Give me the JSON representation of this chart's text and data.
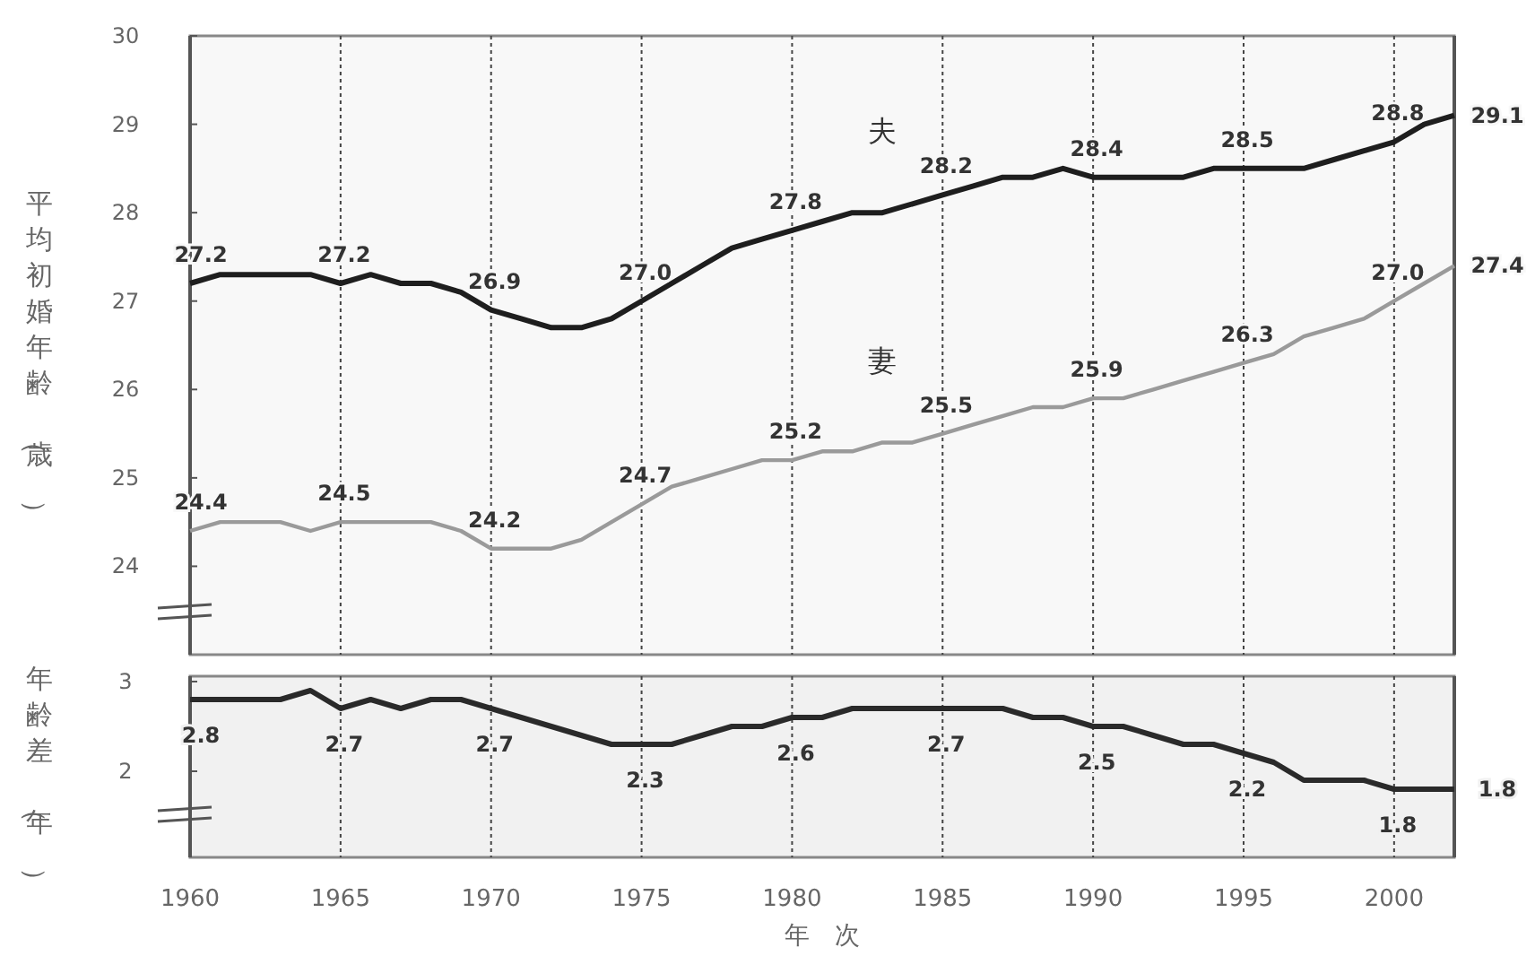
{
  "chart_data": [
    {
      "type": "line",
      "ylabel": "平均初婚年齢（歳）",
      "xlim": [
        1960,
        2002
      ],
      "xticks": [
        1960,
        1965,
        1970,
        1975,
        1980,
        1985,
        1990,
        1995,
        2000
      ],
      "ylim": [
        23,
        30
      ],
      "yticks": [
        24,
        25,
        26,
        27,
        28,
        29,
        30
      ],
      "grid": "x",
      "tick_labels": "y",
      "line_style": "solid",
      "marker": "none",
      "x": [
        1960,
        1961,
        1962,
        1963,
        1964,
        1965,
        1966,
        1967,
        1968,
        1969,
        1970,
        1971,
        1972,
        1973,
        1974,
        1975,
        1976,
        1977,
        1978,
        1979,
        1980,
        1981,
        1982,
        1983,
        1984,
        1985,
        1986,
        1987,
        1988,
        1989,
        1990,
        1991,
        1992,
        1993,
        1994,
        1995,
        1996,
        1997,
        1998,
        1999,
        2000,
        2001,
        2002
      ],
      "series": [
        {
          "name": "夫",
          "color": "#1e1e1e",
          "values": [
            27.2,
            27.3,
            27.3,
            27.3,
            27.3,
            27.2,
            27.3,
            27.2,
            27.2,
            27.1,
            26.9,
            26.8,
            26.7,
            26.7,
            26.8,
            27.0,
            27.2,
            27.4,
            27.6,
            27.7,
            27.8,
            27.9,
            28.0,
            28.0,
            28.1,
            28.2,
            28.3,
            28.4,
            28.4,
            28.5,
            28.4,
            28.4,
            28.4,
            28.4,
            28.5,
            28.5,
            28.5,
            28.5,
            28.6,
            28.7,
            28.8,
            29.0,
            29.1
          ],
          "value_labels": [
            "27.2",
            null,
            null,
            null,
            null,
            "27.2",
            null,
            null,
            null,
            null,
            "26.9",
            null,
            null,
            null,
            null,
            "27.0",
            null,
            null,
            null,
            null,
            "27.8",
            null,
            null,
            null,
            null,
            "28.2",
            null,
            null,
            null,
            null,
            "28.4",
            null,
            null,
            null,
            null,
            "28.5",
            null,
            null,
            null,
            null,
            "28.8",
            null,
            "29.1"
          ]
        },
        {
          "name": "妻",
          "color": "#9a9a9a",
          "values": [
            24.4,
            24.5,
            24.5,
            24.5,
            24.4,
            24.5,
            24.5,
            24.5,
            24.5,
            24.4,
            24.2,
            24.2,
            24.2,
            24.3,
            24.5,
            24.7,
            24.9,
            25.0,
            25.1,
            25.2,
            25.2,
            25.3,
            25.3,
            25.4,
            25.4,
            25.5,
            25.6,
            25.7,
            25.8,
            25.8,
            25.9,
            25.9,
            26.0,
            26.1,
            26.2,
            26.3,
            26.4,
            26.6,
            26.7,
            26.8,
            27.0,
            27.2,
            27.4
          ],
          "value_labels": [
            "24.4",
            null,
            null,
            null,
            null,
            "24.5",
            null,
            null,
            null,
            null,
            "24.2",
            null,
            null,
            null,
            null,
            "24.7",
            null,
            null,
            null,
            null,
            "25.2",
            null,
            null,
            null,
            null,
            "25.5",
            null,
            null,
            null,
            null,
            "25.9",
            null,
            null,
            null,
            null,
            "26.3",
            null,
            null,
            null,
            null,
            "27.0",
            null,
            "27.4"
          ]
        }
      ]
    },
    {
      "type": "line",
      "ylabel": "年齢差（年）",
      "xlabel": "年　次",
      "xlim": [
        1960,
        2002
      ],
      "xticks": [
        1960,
        1965,
        1970,
        1975,
        1980,
        1985,
        1990,
        1995,
        2000
      ],
      "ylim": [
        1.04,
        3.06
      ],
      "yticks": [
        2,
        3
      ],
      "grid": "x",
      "line_style": "solid",
      "marker": "none",
      "x": [
        1960,
        1961,
        1962,
        1963,
        1964,
        1965,
        1966,
        1967,
        1968,
        1969,
        1970,
        1971,
        1972,
        1973,
        1974,
        1975,
        1976,
        1977,
        1978,
        1979,
        1980,
        1981,
        1982,
        1983,
        1984,
        1985,
        1986,
        1987,
        1988,
        1989,
        1990,
        1991,
        1992,
        1993,
        1994,
        1995,
        1996,
        1997,
        1998,
        1999,
        2000,
        2001,
        2002
      ],
      "series": [
        {
          "color": "#2a2a2a",
          "values": [
            2.8,
            2.8,
            2.8,
            2.8,
            2.9,
            2.7,
            2.8,
            2.7,
            2.8,
            2.8,
            2.7,
            2.6,
            2.5,
            2.4,
            2.3,
            2.3,
            2.3,
            2.4,
            2.5,
            2.5,
            2.6,
            2.6,
            2.7,
            2.7,
            2.7,
            2.7,
            2.7,
            2.7,
            2.6,
            2.6,
            2.5,
            2.5,
            2.4,
            2.3,
            2.3,
            2.2,
            2.1,
            1.9,
            1.9,
            1.9,
            1.8,
            1.8,
            1.8
          ],
          "value_labels": [
            "2.8",
            null,
            null,
            null,
            null,
            "2.7",
            null,
            null,
            null,
            null,
            "2.7",
            null,
            null,
            null,
            null,
            "2.3",
            null,
            null,
            null,
            null,
            "2.6",
            null,
            null,
            null,
            null,
            "2.7",
            null,
            null,
            null,
            null,
            "2.5",
            null,
            null,
            null,
            null,
            "2.2",
            null,
            null,
            null,
            null,
            "1.8",
            null,
            "1.8"
          ]
        }
      ]
    }
  ]
}
